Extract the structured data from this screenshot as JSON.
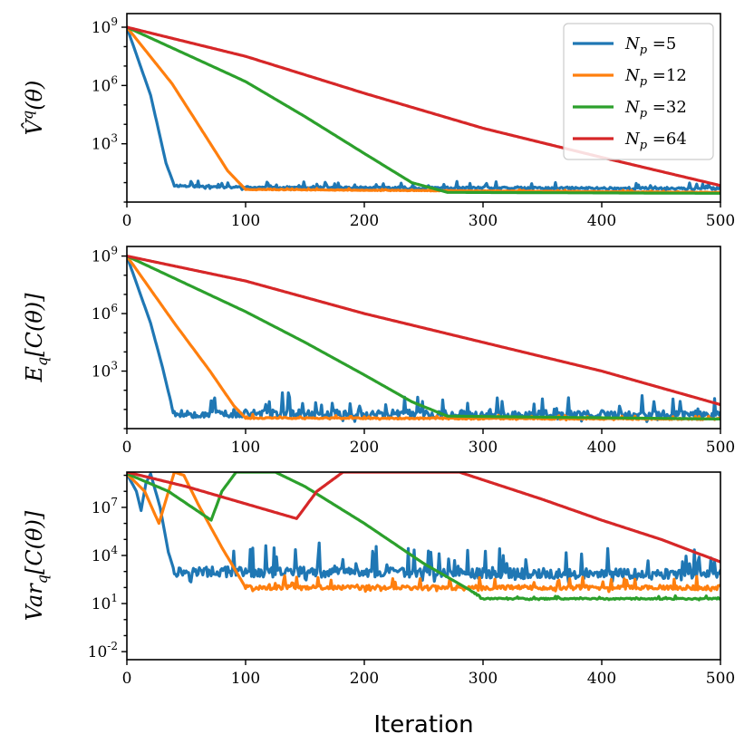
{
  "chart_data": {
    "type": "line",
    "xlabel": "Iteration",
    "xlim": [
      0,
      500
    ],
    "xticks": [
      0,
      100,
      200,
      300,
      400,
      500
    ],
    "legend": {
      "placement": "top-right",
      "entries": [
        {
          "name": "Np =5",
          "prefix": "N",
          "sub": "p",
          "suffix": " =5",
          "color": "#1f77b4"
        },
        {
          "name": "Np =12",
          "prefix": "N",
          "sub": "p",
          "suffix": " =12",
          "color": "#ff7f0e"
        },
        {
          "name": "Np =32",
          "prefix": "N",
          "sub": "p",
          "suffix": " =32",
          "color": "#2ca02c"
        },
        {
          "name": "Np =64",
          "prefix": "N",
          "sub": "p",
          "suffix": " =64",
          "color": "#d62728"
        }
      ]
    },
    "panels": [
      {
        "id": "V",
        "ylabel": "V̂q(θ)",
        "yscale": "log",
        "ylim_log10": [
          0.0,
          9.7
        ],
        "yticks_log10": [
          3,
          6,
          9
        ],
        "ytick_labels": [
          "10^3",
          "10^6",
          "10^9"
        ],
        "series": [
          {
            "name": "Np =5",
            "color": "#1f77b4",
            "noise": 0.12,
            "noise_start": 40,
            "seed": 11,
            "points": [
              [
                0,
                9.0
              ],
              [
                20,
                5.5
              ],
              [
                33,
                2.0
              ],
              [
                40,
                0.85
              ],
              [
                100,
                0.75
              ],
              [
                300,
                0.72
              ],
              [
                500,
                0.7
              ]
            ]
          },
          {
            "name": "Np =12",
            "color": "#ff7f0e",
            "noise": 0.03,
            "noise_start": 100,
            "seed": 23,
            "points": [
              [
                0,
                9.0
              ],
              [
                38,
                6.1
              ],
              [
                60,
                4.0
              ],
              [
                85,
                1.6
              ],
              [
                100,
                0.65
              ],
              [
                500,
                0.5
              ]
            ]
          },
          {
            "name": "Np =32",
            "color": "#2ca02c",
            "noise": 0.0,
            "noise_start": 500,
            "seed": 37,
            "points": [
              [
                0,
                9.0
              ],
              [
                100,
                6.2
              ],
              [
                150,
                4.4
              ],
              [
                200,
                2.5
              ],
              [
                240,
                1.0
              ],
              [
                270,
                0.5
              ],
              [
                500,
                0.45
              ]
            ]
          },
          {
            "name": "Np =64",
            "color": "#d62728",
            "noise": 0.0,
            "noise_start": 500,
            "seed": 41,
            "points": [
              [
                0,
                9.0
              ],
              [
                100,
                7.5
              ],
              [
                200,
                5.6
              ],
              [
                300,
                3.8
              ],
              [
                400,
                2.3
              ],
              [
                500,
                0.85
              ]
            ]
          }
        ]
      },
      {
        "id": "E",
        "ylabel": "Eq[C(θ)]",
        "yscale": "log",
        "ylim_log10": [
          0.0,
          9.5
        ],
        "yticks_log10": [
          3,
          6,
          9
        ],
        "ytick_labels": [
          "10^3",
          "10^6",
          "10^9"
        ],
        "series": [
          {
            "name": "Np =5",
            "color": "#1f77b4",
            "noise": 0.45,
            "noise_start": 38,
            "seed": 53,
            "points": [
              [
                0,
                9.0
              ],
              [
                20,
                5.5
              ],
              [
                30,
                3.2
              ],
              [
                37,
                1.4
              ],
              [
                40,
                0.8
              ],
              [
                500,
                0.7
              ]
            ]
          },
          {
            "name": "Np =12",
            "color": "#ff7f0e",
            "noise": 0.07,
            "noise_start": 100,
            "seed": 61,
            "points": [
              [
                0,
                9.0
              ],
              [
                40,
                5.5
              ],
              [
                70,
                3.0
              ],
              [
                90,
                1.2
              ],
              [
                100,
                0.55
              ],
              [
                500,
                0.5
              ]
            ]
          },
          {
            "name": "Np =32",
            "color": "#2ca02c",
            "noise": 0.0,
            "noise_start": 500,
            "seed": 71,
            "points": [
              [
                0,
                9.0
              ],
              [
                100,
                6.1
              ],
              [
                150,
                4.5
              ],
              [
                200,
                2.8
              ],
              [
                240,
                1.4
              ],
              [
                270,
                0.65
              ],
              [
                500,
                0.5
              ]
            ]
          },
          {
            "name": "Np =64",
            "color": "#d62728",
            "noise": 0.0,
            "noise_start": 500,
            "seed": 83,
            "points": [
              [
                0,
                9.0
              ],
              [
                100,
                7.7
              ],
              [
                200,
                6.0
              ],
              [
                300,
                4.5
              ],
              [
                400,
                3.0
              ],
              [
                500,
                1.25
              ]
            ]
          }
        ]
      },
      {
        "id": "Var",
        "ylabel": "Varq[C(θ)]",
        "yscale": "log",
        "ylim_log10": [
          -2.5,
          9.2
        ],
        "yticks_log10": [
          -2,
          1,
          4,
          7
        ],
        "ytick_labels": [
          "10^-2",
          "10^1",
          "10^4",
          "10^7"
        ],
        "series": [
          {
            "name": "Np =5",
            "color": "#1f77b4",
            "noise": 0.65,
            "noise_start": 40,
            "seed": 97,
            "points": [
              [
                0,
                9.1
              ],
              [
                8,
                8.0
              ],
              [
                12,
                6.8
              ],
              [
                16,
                8.5
              ],
              [
                20,
                9.1
              ],
              [
                28,
                7.0
              ],
              [
                35,
                4.2
              ],
              [
                40,
                3.0
              ],
              [
                500,
                2.8
              ]
            ]
          },
          {
            "name": "Np =12",
            "color": "#ff7f0e",
            "noise": 0.28,
            "noise_start": 100,
            "seed": 101,
            "points": [
              [
                0,
                9.1
              ],
              [
                15,
                8.0
              ],
              [
                27,
                6.0
              ],
              [
                40,
                9.2
              ],
              [
                48,
                9.0
              ],
              [
                60,
                7.2
              ],
              [
                80,
                4.5
              ],
              [
                100,
                2.0
              ],
              [
                500,
                2.0
              ]
            ]
          },
          {
            "name": "Np =32",
            "color": "#2ca02c",
            "noise": 0.08,
            "noise_start": 290,
            "seed": 113,
            "points": [
              [
                0,
                9.1
              ],
              [
                35,
                8.0
              ],
              [
                71,
                6.2
              ],
              [
                80,
                8.0
              ],
              [
                92,
                9.2
              ],
              [
                125,
                9.2
              ],
              [
                150,
                8.3
              ],
              [
                200,
                6.0
              ],
              [
                250,
                3.5
              ],
              [
                290,
                1.8
              ],
              [
                300,
                1.3
              ],
              [
                500,
                1.3
              ]
            ]
          },
          {
            "name": "Np =64",
            "color": "#d62728",
            "noise": 0.0,
            "noise_start": 500,
            "seed": 127,
            "points": [
              [
                0,
                9.2
              ],
              [
                50,
                8.3
              ],
              [
                143,
                6.3
              ],
              [
                160,
                8.0
              ],
              [
                182,
                9.2
              ],
              [
                280,
                9.2
              ],
              [
                350,
                7.5
              ],
              [
                400,
                6.2
              ],
              [
                450,
                5.0
              ],
              [
                500,
                3.6
              ]
            ]
          }
        ]
      }
    ]
  }
}
